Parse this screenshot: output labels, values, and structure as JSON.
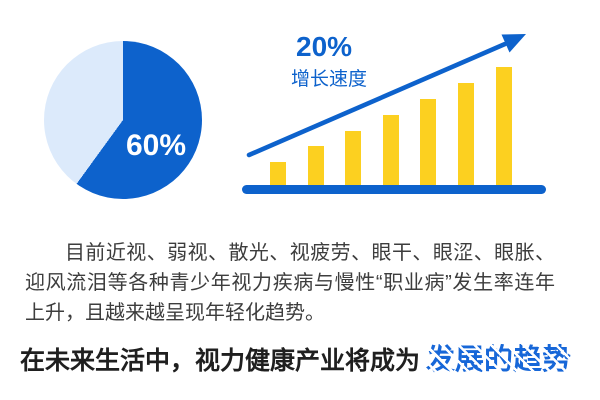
{
  "colors": {
    "primary_blue": "#0d62cc",
    "light_blue": "#dceafb",
    "bar_yellow": "#fcd020",
    "paragraph_text": "#3d3d3d",
    "headline_text": "#1f1f1f",
    "highlight_blue": "#1767d8",
    "pie_label_white": "#ffffff"
  },
  "pie_chart": {
    "percent_label": "60%"
  },
  "growth_chart": {
    "rate_label": "20%",
    "rate_caption": "增长速度"
  },
  "paragraph": {
    "text": "目前近视、弱视、散光、视疲劳、眼干、眼涩、眼胀、迎风流泪等各种青少年视力疾病与慢性“职业病”发生率连年上升，且越来越呈现年轻化趋势。"
  },
  "headline": {
    "prefix": "在未来生活中，视力健康产业将成为",
    "highlight": "发展的趋势"
  },
  "chart_data": [
    {
      "type": "pie",
      "title": "",
      "slices": [
        {
          "label": "60%",
          "value": 60,
          "color": "#0d62cc"
        },
        {
          "label": "",
          "value": 40,
          "color": "#dceafb"
        }
      ],
      "start_angle_deg": 0,
      "direction": "clockwise",
      "legend": "none",
      "annotation": "white 60% label inside dark slice"
    },
    {
      "type": "bar",
      "title": "",
      "values": [
        25,
        41,
        56,
        72,
        88,
        104,
        120
      ],
      "value_units": "relative bar heights in px (no axis scale shown)",
      "bar_color": "#fcd020",
      "baseline_color": "#0d62cc",
      "annotations": [
        "20%",
        "增长速度"
      ],
      "trendline": "straight blue arrow rising left-to-right above bars",
      "xlabel": "",
      "ylabel": "",
      "grid": "off",
      "legend": "none"
    }
  ]
}
